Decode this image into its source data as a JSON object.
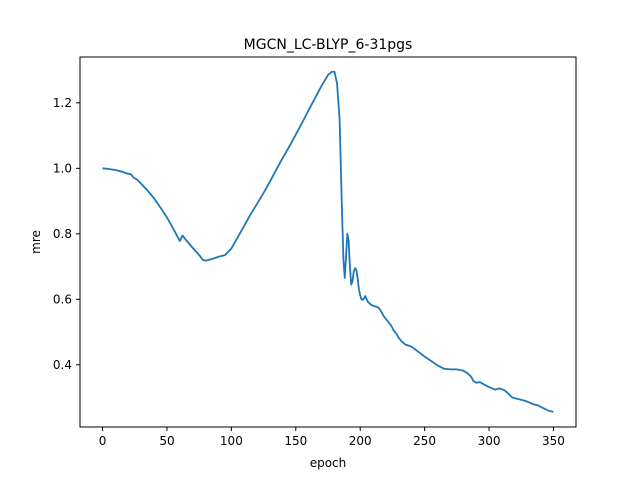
{
  "chart_data": {
    "type": "line",
    "title": "MGCN_LC-BLYP_6-31pgs",
    "xlabel": "epoch",
    "ylabel": "mre",
    "xlim": [
      -17.5,
      367.5
    ],
    "ylim": [
      0.21,
      1.34
    ],
    "xticks": [
      0,
      50,
      100,
      150,
      200,
      250,
      300,
      350
    ],
    "yticks": [
      0.4,
      0.6,
      0.8,
      1.0,
      1.2
    ],
    "xtick_labels": [
      "0",
      "50",
      "100",
      "150",
      "200",
      "250",
      "300",
      "350"
    ],
    "ytick_labels": [
      "0.4",
      "0.6",
      "0.8",
      "1.0",
      "1.2"
    ],
    "grid": false,
    "legend": "none",
    "series": [
      {
        "color": "#1f77b4",
        "points": [
          [
            0,
            1.0
          ],
          [
            5,
            0.998
          ],
          [
            10,
            0.995
          ],
          [
            15,
            0.99
          ],
          [
            20,
            0.983
          ],
          [
            22,
            0.982
          ],
          [
            24,
            0.972
          ],
          [
            27,
            0.965
          ],
          [
            30,
            0.953
          ],
          [
            35,
            0.932
          ],
          [
            40,
            0.908
          ],
          [
            45,
            0.88
          ],
          [
            50,
            0.85
          ],
          [
            55,
            0.815
          ],
          [
            60,
            0.778
          ],
          [
            62,
            0.795
          ],
          [
            65,
            0.78
          ],
          [
            70,
            0.757
          ],
          [
            75,
            0.735
          ],
          [
            78,
            0.72
          ],
          [
            80,
            0.718
          ],
          [
            85,
            0.723
          ],
          [
            90,
            0.73
          ],
          [
            95,
            0.735
          ],
          [
            100,
            0.755
          ],
          [
            105,
            0.79
          ],
          [
            110,
            0.825
          ],
          [
            115,
            0.86
          ],
          [
            120,
            0.892
          ],
          [
            125,
            0.925
          ],
          [
            130,
            0.96
          ],
          [
            135,
            0.997
          ],
          [
            140,
            1.033
          ],
          [
            145,
            1.067
          ],
          [
            150,
            1.103
          ],
          [
            155,
            1.14
          ],
          [
            160,
            1.178
          ],
          [
            165,
            1.215
          ],
          [
            170,
            1.252
          ],
          [
            175,
            1.285
          ],
          [
            178,
            1.295
          ],
          [
            180,
            1.295
          ],
          [
            182,
            1.26
          ],
          [
            184,
            1.15
          ],
          [
            185,
            1.0
          ],
          [
            186,
            0.85
          ],
          [
            187,
            0.72
          ],
          [
            188,
            0.665
          ],
          [
            189,
            0.73
          ],
          [
            190,
            0.8
          ],
          [
            191,
            0.78
          ],
          [
            192,
            0.7
          ],
          [
            193,
            0.645
          ],
          [
            194,
            0.655
          ],
          [
            195,
            0.685
          ],
          [
            196,
            0.695
          ],
          [
            197,
            0.69
          ],
          [
            198,
            0.665
          ],
          [
            199,
            0.63
          ],
          [
            200,
            0.612
          ],
          [
            201,
            0.6
          ],
          [
            202,
            0.598
          ],
          [
            203,
            0.603
          ],
          [
            204,
            0.61
          ],
          [
            205,
            0.6
          ],
          [
            206,
            0.592
          ],
          [
            208,
            0.585
          ],
          [
            210,
            0.58
          ],
          [
            212,
            0.578
          ],
          [
            214,
            0.575
          ],
          [
            216,
            0.565
          ],
          [
            218,
            0.55
          ],
          [
            220,
            0.54
          ],
          [
            222,
            0.53
          ],
          [
            224,
            0.52
          ],
          [
            226,
            0.505
          ],
          [
            228,
            0.495
          ],
          [
            230,
            0.482
          ],
          [
            232,
            0.472
          ],
          [
            235,
            0.462
          ],
          [
            240,
            0.455
          ],
          [
            245,
            0.44
          ],
          [
            250,
            0.425
          ],
          [
            255,
            0.412
          ],
          [
            260,
            0.398
          ],
          [
            265,
            0.388
          ],
          [
            270,
            0.386
          ],
          [
            275,
            0.386
          ],
          [
            280,
            0.382
          ],
          [
            283,
            0.375
          ],
          [
            286,
            0.364
          ],
          [
            288,
            0.35
          ],
          [
            290,
            0.345
          ],
          [
            293,
            0.347
          ],
          [
            296,
            0.34
          ],
          [
            300,
            0.332
          ],
          [
            305,
            0.324
          ],
          [
            308,
            0.328
          ],
          [
            312,
            0.322
          ],
          [
            315,
            0.312
          ],
          [
            318,
            0.3
          ],
          [
            322,
            0.296
          ],
          [
            326,
            0.292
          ],
          [
            330,
            0.287
          ],
          [
            334,
            0.28
          ],
          [
            338,
            0.276
          ],
          [
            342,
            0.268
          ],
          [
            346,
            0.26
          ],
          [
            350,
            0.256
          ]
        ]
      }
    ]
  }
}
